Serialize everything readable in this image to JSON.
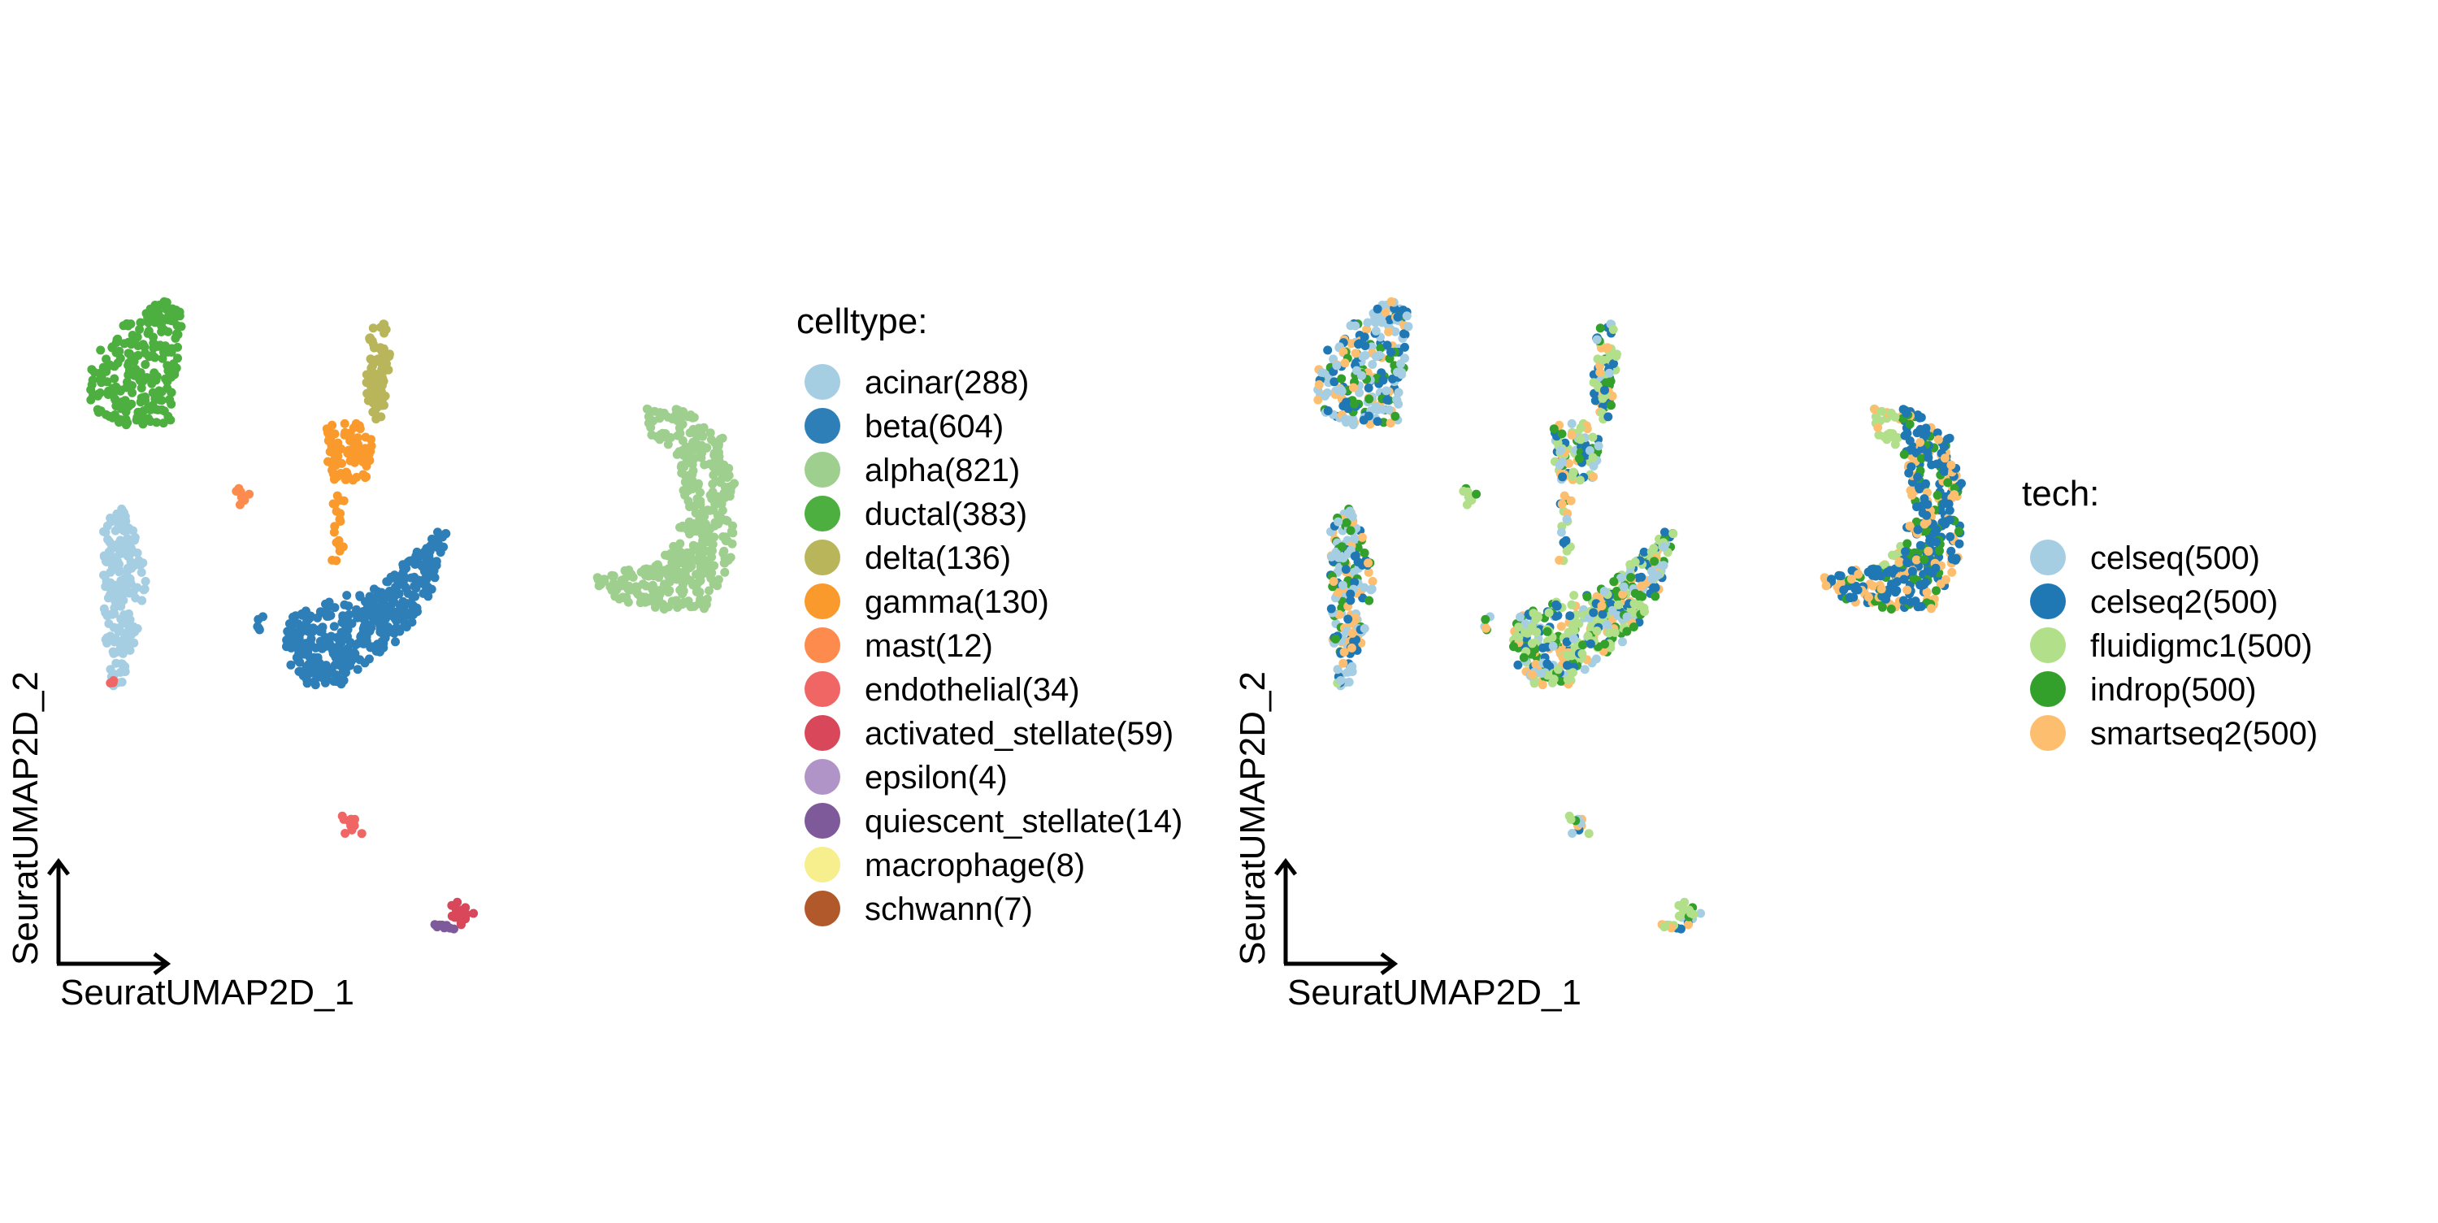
{
  "chart_data": [
    {
      "type": "scatter",
      "xlabel": "SeuratUMAP2D_1",
      "ylabel": "SeuratUMAP2D_2",
      "legend_position": "right",
      "grid": false,
      "legend": {
        "title": "celltype:",
        "items": [
          {
            "label": "acinar(288)",
            "color": "#A6CEE3"
          },
          {
            "label": "beta(604)",
            "color": "#2E7FB8"
          },
          {
            "label": "alpha(821)",
            "color": "#9ECF8E"
          },
          {
            "label": "ductal(383)",
            "color": "#4DAF40"
          },
          {
            "label": "delta(136)",
            "color": "#B8B55A"
          },
          {
            "label": "gamma(130)",
            "color": "#FB9A2C"
          },
          {
            "label": "mast(12)",
            "color": "#FD8B4E"
          },
          {
            "label": "endothelial(34)",
            "color": "#EF6665"
          },
          {
            "label": "activated_stellate(59)",
            "color": "#D9475A"
          },
          {
            "label": "epsilon(4)",
            "color": "#B194C7"
          },
          {
            "label": "quiescent_stellate(14)",
            "color": "#7E5A9B"
          },
          {
            "label": "macrophage(8)",
            "color": "#F7EF8E"
          },
          {
            "label": "schwann(7)",
            "color": "#B1592A"
          }
        ]
      }
    },
    {
      "type": "scatter",
      "xlabel": "SeuratUMAP2D_1",
      "ylabel": "SeuratUMAP2D_2",
      "legend_position": "right",
      "grid": false,
      "legend": {
        "title": "tech:",
        "items": [
          {
            "label": "celseq(500)",
            "color": "#A6CEE3"
          },
          {
            "label": "celseq2(500)",
            "color": "#1F78B4"
          },
          {
            "label": "fluidigmc1(500)",
            "color": "#B2DF8A"
          },
          {
            "label": "indrop(500)",
            "color": "#33A02C"
          },
          {
            "label": "smartseq2(500)",
            "color": "#FDBF6F"
          }
        ]
      }
    }
  ]
}
